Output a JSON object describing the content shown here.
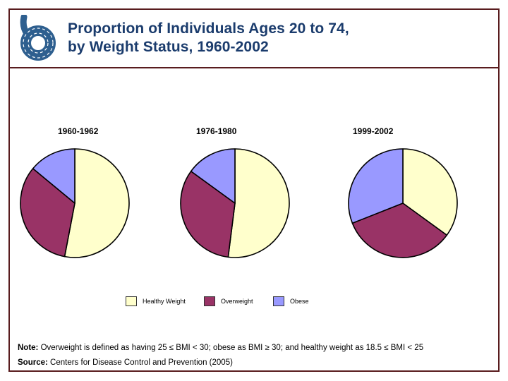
{
  "header": {
    "title_line1": "Proportion of Individuals Ages 20 to 74,",
    "title_line2": "by Weight Status, 1960-2002"
  },
  "chart_data": {
    "type": "pie",
    "title": "Proportion of Individuals Ages 20 to 74, by Weight Status, 1960-2002",
    "categories": [
      "Healthy Weight",
      "Overweight",
      "Obese"
    ],
    "colors": [
      "#FFFFCC",
      "#993366",
      "#9999FF"
    ],
    "unit": "percent",
    "start_angle_deg": 0,
    "direction": "clockwise",
    "legend_position": "bottom",
    "charts": [
      {
        "label": "1960-1962",
        "values": [
          53,
          33,
          14
        ]
      },
      {
        "label": "1976-1980",
        "values": [
          52,
          33,
          15
        ]
      },
      {
        "label": "1999-2002",
        "values": [
          35,
          34,
          31
        ]
      }
    ]
  },
  "footer": {
    "note_label": "Note:",
    "note_text": "Overweight is defined as having 25 ≤ BMI < 30; obese as BMI ≥ 30; and healthy weight as 18.5 ≤ BMI < 25",
    "source_label": "Source:",
    "source_text": "Centers for Disease Control and Prevention (2005)"
  },
  "colors": {
    "accent_border": "#591C1E",
    "title_text": "#1B3C6D",
    "logo_blue": "#2E5F8F",
    "slice_outline": "#000000"
  }
}
